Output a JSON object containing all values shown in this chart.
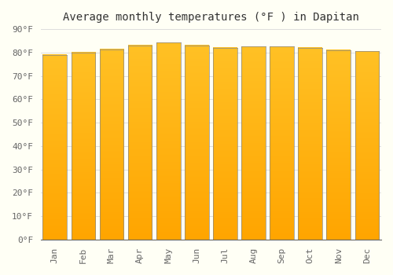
{
  "title": "Average monthly temperatures (°F ) in Dapitan",
  "months": [
    "Jan",
    "Feb",
    "Mar",
    "Apr",
    "May",
    "Jun",
    "Jul",
    "Aug",
    "Sep",
    "Oct",
    "Nov",
    "Dec"
  ],
  "values": [
    79.0,
    80.0,
    81.3,
    83.1,
    84.2,
    83.1,
    82.0,
    82.6,
    82.6,
    82.0,
    81.1,
    80.6
  ],
  "bar_color_top": "#FFC125",
  "bar_color_bottom": "#FFA500",
  "bar_edge_color": "#888888",
  "ylim": [
    0,
    90
  ],
  "yticks": [
    0,
    10,
    20,
    30,
    40,
    50,
    60,
    70,
    80,
    90
  ],
  "ytick_labels": [
    "0°F",
    "10°F",
    "20°F",
    "30°F",
    "40°F",
    "50°F",
    "60°F",
    "70°F",
    "80°F",
    "90°F"
  ],
  "background_color": "#FFFFF5",
  "grid_color": "#DDDDDD",
  "title_fontsize": 10,
  "tick_fontsize": 8,
  "font_family": "monospace",
  "bar_width": 0.85
}
